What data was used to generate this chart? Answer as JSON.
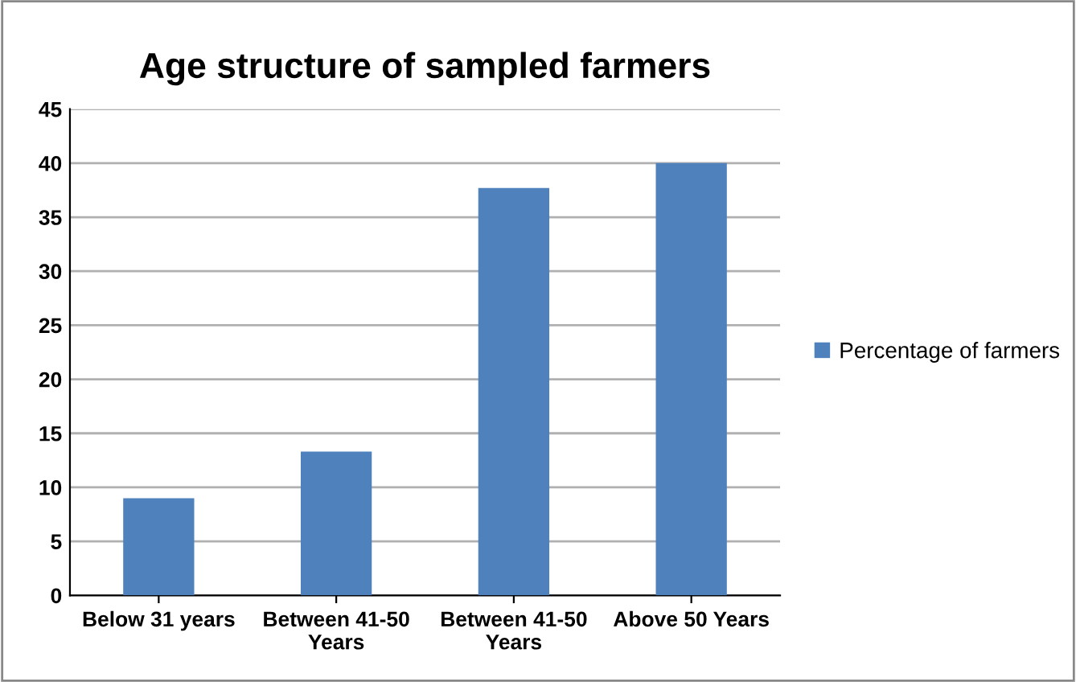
{
  "chart_data": {
    "type": "bar",
    "title": "Age structure of sampled farmers",
    "categories": [
      "Below 31 years",
      "Between 41-50\nYears",
      "Between 41-50\nYears",
      "Above 50 Years"
    ],
    "series": [
      {
        "name": "Percentage of farmers",
        "color": "#4f81bd",
        "values": [
          9,
          13.3,
          37.7,
          40
        ]
      }
    ],
    "ylim": [
      0,
      45
    ],
    "yticks": [
      0,
      5,
      10,
      15,
      20,
      25,
      30,
      35,
      40,
      45
    ],
    "grid": "y",
    "legend": "right"
  }
}
